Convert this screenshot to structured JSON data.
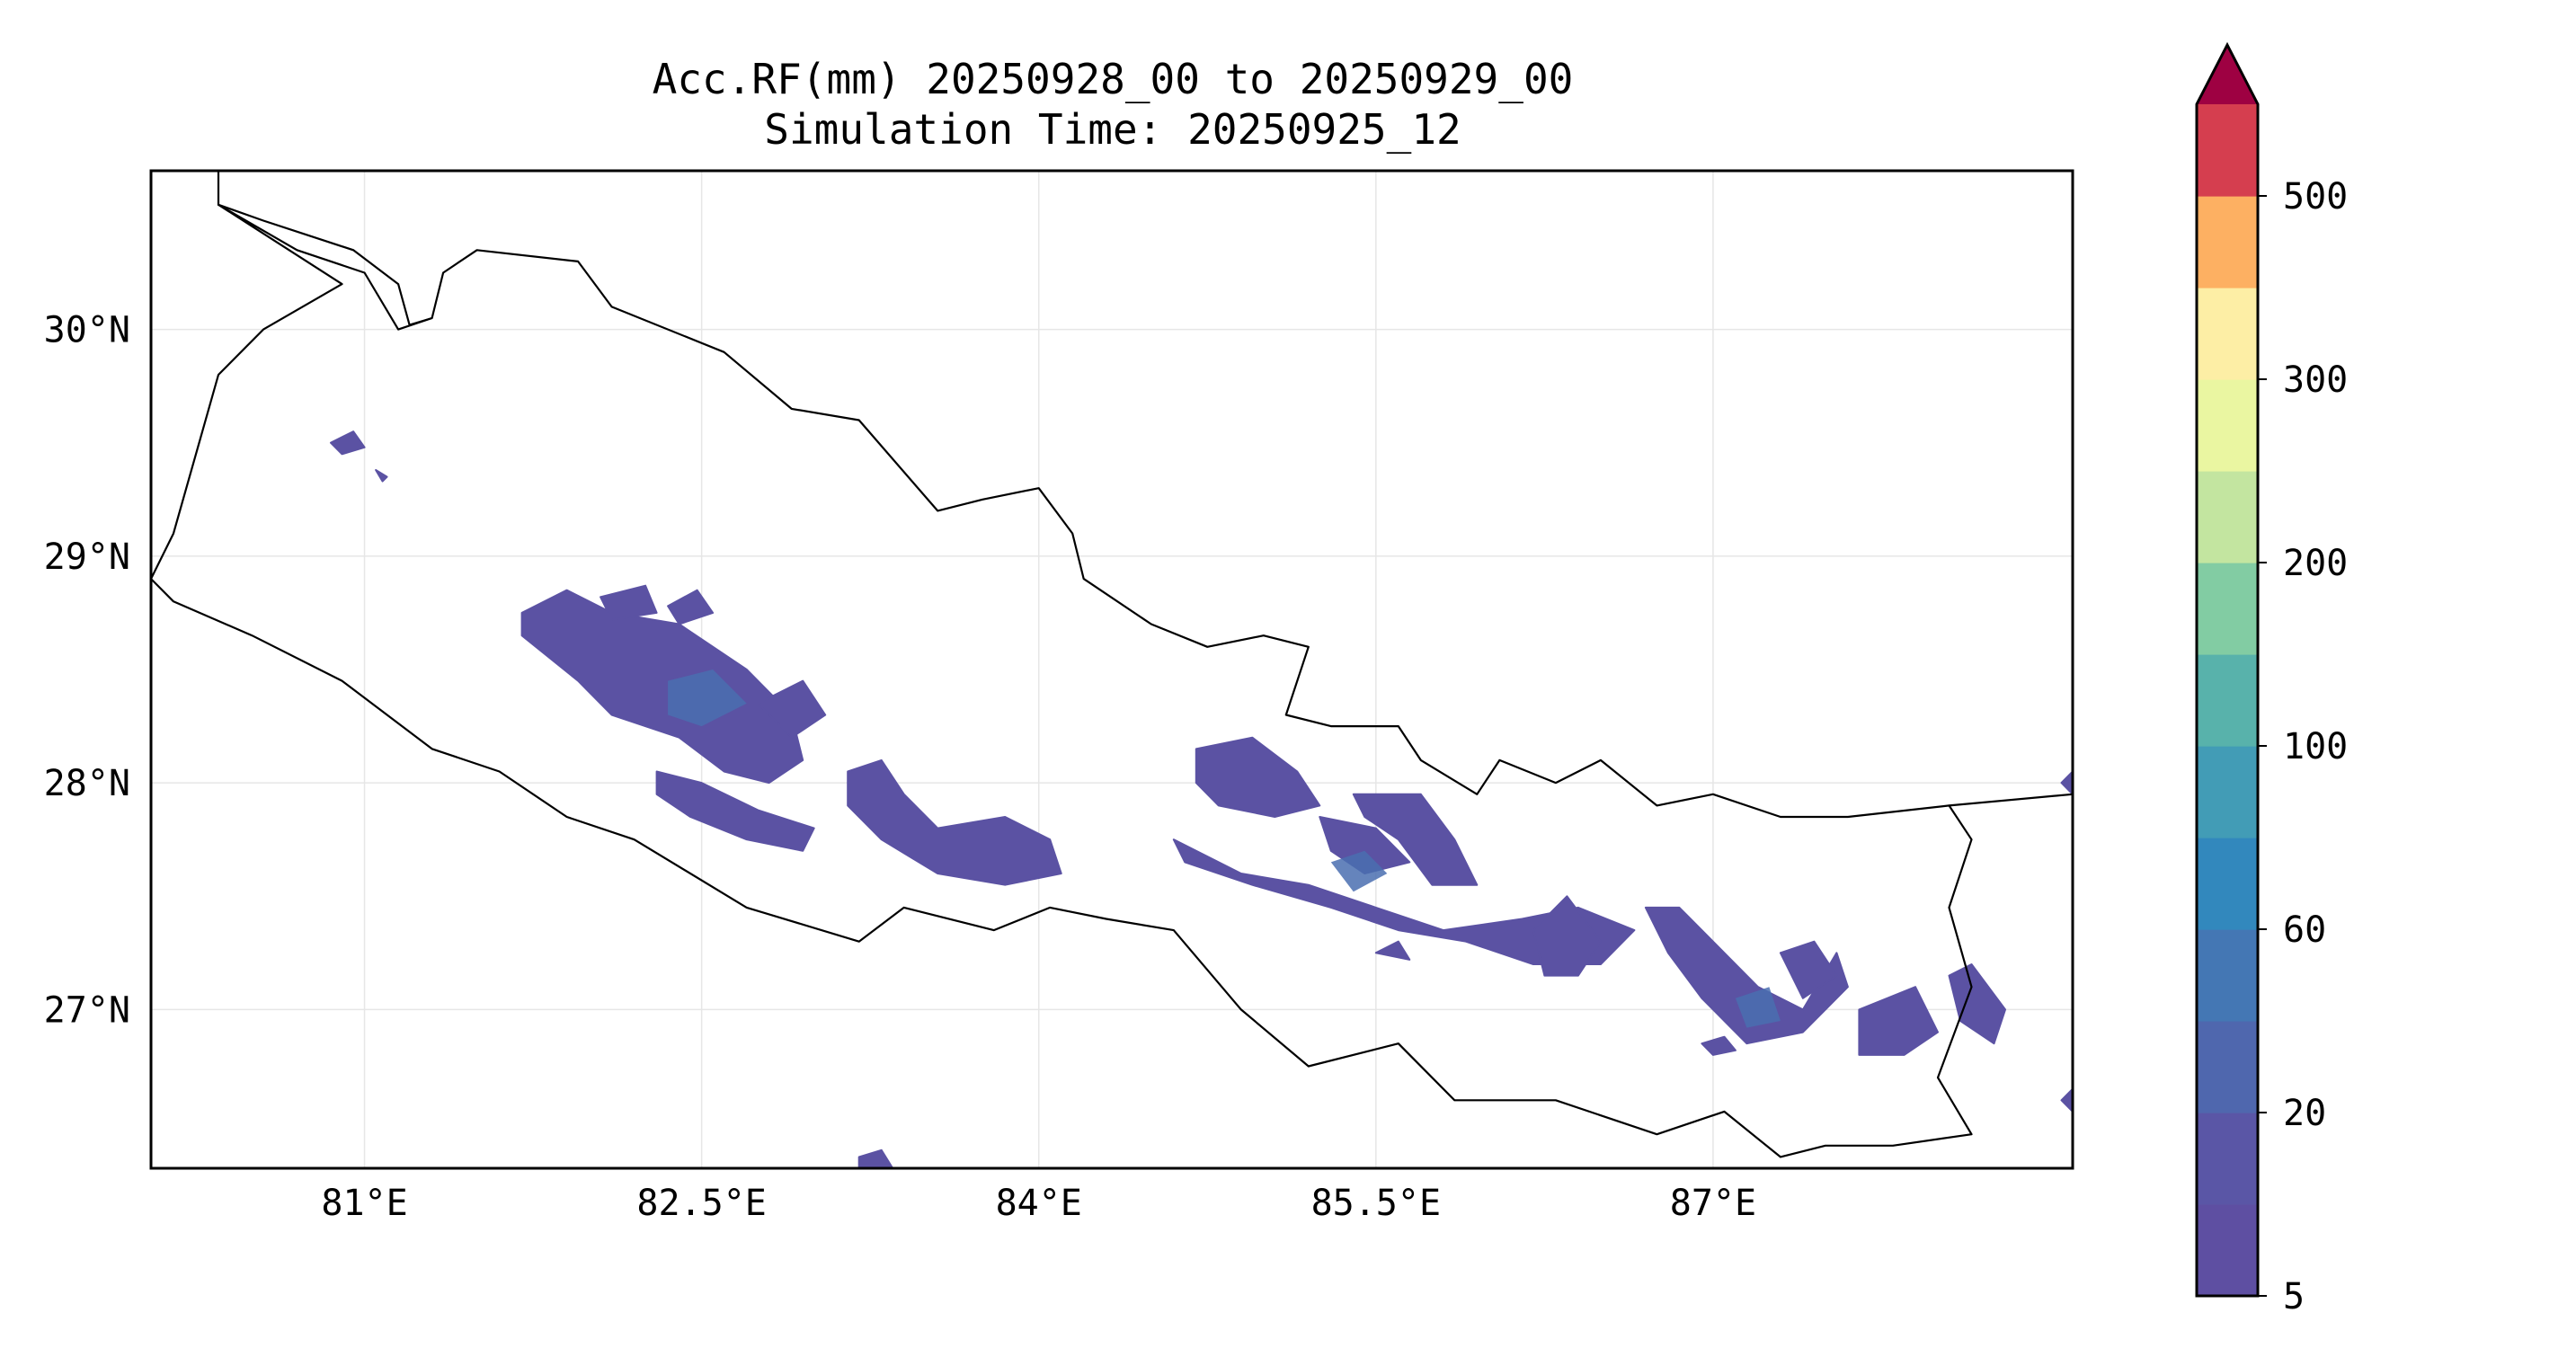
{
  "figure": {
    "title_line1": "Acc.RF(mm) 20250928_00 to 20250929_00",
    "title_line2": "Simulation Time: 20250925_12"
  },
  "map": {
    "extent": {
      "lon": [
        80.05,
        88.6
      ],
      "lat": [
        26.3,
        30.7
      ]
    },
    "grid": true,
    "x_ticks": [
      {
        "value": 81.0,
        "label": "81°E"
      },
      {
        "value": 82.5,
        "label": "82.5°E"
      },
      {
        "value": 84.0,
        "label": "84°E"
      },
      {
        "value": 85.5,
        "label": "85.5°E"
      },
      {
        "value": 87.0,
        "label": "87°E"
      }
    ],
    "y_ticks": [
      {
        "value": 30.0,
        "label": "30°N"
      },
      {
        "value": 29.0,
        "label": "29°N"
      },
      {
        "value": 28.0,
        "label": "28°N"
      },
      {
        "value": 27.0,
        "label": "27°N"
      }
    ],
    "rain_color": "#5b52a3",
    "rain_core_color": "#4a6fb0",
    "border_color": "#000000",
    "nepal_border": [
      [
        80.35,
        30.55
      ],
      [
        80.7,
        30.35
      ],
      [
        81.0,
        30.25
      ],
      [
        81.15,
        30.0
      ],
      [
        81.3,
        30.05
      ],
      [
        81.35,
        30.25
      ],
      [
        81.5,
        30.35
      ],
      [
        81.95,
        30.3
      ],
      [
        82.1,
        30.1
      ],
      [
        82.6,
        29.9
      ],
      [
        82.9,
        29.65
      ],
      [
        83.2,
        29.6
      ],
      [
        83.55,
        29.2
      ],
      [
        83.75,
        29.25
      ],
      [
        84.0,
        29.3
      ],
      [
        84.15,
        29.1
      ],
      [
        84.2,
        28.9
      ],
      [
        84.5,
        28.7
      ],
      [
        84.75,
        28.6
      ],
      [
        85.0,
        28.65
      ],
      [
        85.2,
        28.6
      ],
      [
        85.1,
        28.3
      ],
      [
        85.3,
        28.25
      ],
      [
        85.6,
        28.25
      ],
      [
        85.7,
        28.1
      ],
      [
        85.95,
        27.95
      ],
      [
        86.05,
        28.1
      ],
      [
        86.3,
        28.0
      ],
      [
        86.5,
        28.1
      ],
      [
        86.75,
        27.9
      ],
      [
        87.0,
        27.95
      ],
      [
        87.3,
        27.85
      ],
      [
        87.6,
        27.85
      ],
      [
        88.05,
        27.9
      ],
      [
        88.15,
        27.75
      ],
      [
        88.05,
        27.45
      ],
      [
        88.15,
        27.1
      ],
      [
        88.0,
        26.7
      ],
      [
        88.15,
        26.45
      ],
      [
        87.8,
        26.4
      ],
      [
        87.5,
        26.4
      ],
      [
        87.3,
        26.35
      ],
      [
        87.05,
        26.55
      ],
      [
        86.75,
        26.45
      ],
      [
        86.3,
        26.6
      ],
      [
        85.85,
        26.6
      ],
      [
        85.6,
        26.85
      ],
      [
        85.2,
        26.75
      ],
      [
        84.9,
        27.0
      ],
      [
        84.6,
        27.35
      ],
      [
        84.3,
        27.4
      ],
      [
        84.05,
        27.45
      ],
      [
        83.8,
        27.35
      ],
      [
        83.4,
        27.45
      ],
      [
        83.2,
        27.3
      ],
      [
        82.7,
        27.45
      ],
      [
        82.2,
        27.75
      ],
      [
        81.9,
        27.85
      ],
      [
        81.6,
        28.05
      ],
      [
        81.3,
        28.15
      ],
      [
        80.9,
        28.45
      ],
      [
        80.5,
        28.65
      ],
      [
        80.15,
        28.8
      ],
      [
        80.05,
        28.9
      ],
      [
        80.15,
        29.1
      ],
      [
        80.25,
        29.45
      ],
      [
        80.35,
        29.8
      ],
      [
        80.55,
        30.0
      ],
      [
        80.9,
        30.2
      ],
      [
        80.35,
        30.55
      ]
    ],
    "east_border": [
      [
        88.05,
        27.9
      ],
      [
        88.6,
        27.95
      ]
    ],
    "nw_border": [
      [
        80.35,
        30.7
      ],
      [
        80.35,
        30.55
      ],
      [
        80.55,
        30.48
      ],
      [
        80.95,
        30.35
      ],
      [
        81.15,
        30.2
      ],
      [
        81.2,
        30.02
      ],
      [
        81.3,
        30.05
      ]
    ],
    "rain_regions": [
      [
        [
          80.85,
          29.5
        ],
        [
          80.95,
          29.55
        ],
        [
          81.0,
          29.48
        ],
        [
          80.9,
          29.45
        ]
      ],
      [
        [
          81.05,
          29.38
        ],
        [
          81.1,
          29.35
        ],
        [
          81.08,
          29.33
        ]
      ],
      [
        [
          81.7,
          28.75
        ],
        [
          81.9,
          28.85
        ],
        [
          82.1,
          28.75
        ],
        [
          82.4,
          28.7
        ],
        [
          82.7,
          28.5
        ],
        [
          82.9,
          28.3
        ],
        [
          82.95,
          28.1
        ],
        [
          82.8,
          28.0
        ],
        [
          82.6,
          28.05
        ],
        [
          82.4,
          28.2
        ],
        [
          82.1,
          28.3
        ],
        [
          81.95,
          28.45
        ],
        [
          81.7,
          28.65
        ]
      ],
      [
        [
          82.05,
          28.82
        ],
        [
          82.25,
          28.87
        ],
        [
          82.3,
          28.75
        ],
        [
          82.1,
          28.72
        ]
      ],
      [
        [
          82.35,
          28.78
        ],
        [
          82.48,
          28.85
        ],
        [
          82.55,
          28.75
        ],
        [
          82.4,
          28.7
        ]
      ],
      [
        [
          82.3,
          28.05
        ],
        [
          82.5,
          28.0
        ],
        [
          82.75,
          27.88
        ],
        [
          83.0,
          27.8
        ],
        [
          82.95,
          27.7
        ],
        [
          82.7,
          27.75
        ],
        [
          82.45,
          27.85
        ],
        [
          82.3,
          27.95
        ]
      ],
      [
        [
          82.75,
          28.35
        ],
        [
          82.95,
          28.45
        ],
        [
          83.05,
          28.3
        ],
        [
          82.9,
          28.2
        ]
      ],
      [
        [
          83.15,
          28.05
        ],
        [
          83.3,
          28.1
        ],
        [
          83.4,
          27.95
        ],
        [
          83.55,
          27.8
        ],
        [
          83.85,
          27.85
        ],
        [
          84.05,
          27.75
        ],
        [
          84.1,
          27.6
        ],
        [
          83.85,
          27.55
        ],
        [
          83.55,
          27.6
        ],
        [
          83.3,
          27.75
        ],
        [
          83.15,
          27.9
        ]
      ],
      [
        [
          84.7,
          28.15
        ],
        [
          84.95,
          28.2
        ],
        [
          85.15,
          28.05
        ],
        [
          85.25,
          27.9
        ],
        [
          85.05,
          27.85
        ],
        [
          84.8,
          27.9
        ],
        [
          84.7,
          28.0
        ]
      ],
      [
        [
          84.6,
          27.75
        ],
        [
          84.9,
          27.6
        ],
        [
          85.2,
          27.55
        ],
        [
          85.5,
          27.45
        ],
        [
          85.8,
          27.35
        ],
        [
          86.15,
          27.4
        ],
        [
          86.4,
          27.45
        ],
        [
          86.65,
          27.35
        ],
        [
          86.5,
          27.2
        ],
        [
          86.2,
          27.2
        ],
        [
          85.9,
          27.3
        ],
        [
          85.6,
          27.35
        ],
        [
          85.3,
          27.45
        ],
        [
          84.95,
          27.55
        ],
        [
          84.65,
          27.65
        ]
      ],
      [
        [
          85.25,
          27.85
        ],
        [
          85.5,
          27.8
        ],
        [
          85.65,
          27.65
        ],
        [
          85.45,
          27.6
        ],
        [
          85.3,
          27.7
        ]
      ],
      [
        [
          85.4,
          27.95
        ],
        [
          85.7,
          27.95
        ],
        [
          85.85,
          27.75
        ],
        [
          85.95,
          27.55
        ],
        [
          85.75,
          27.55
        ],
        [
          85.6,
          27.75
        ],
        [
          85.45,
          27.85
        ]
      ],
      [
        [
          85.5,
          27.25
        ],
        [
          85.6,
          27.3
        ],
        [
          85.65,
          27.22
        ]
      ],
      [
        [
          86.2,
          27.35
        ],
        [
          86.35,
          27.5
        ],
        [
          86.5,
          27.3
        ],
        [
          86.4,
          27.15
        ],
        [
          86.25,
          27.15
        ]
      ],
      [
        [
          86.7,
          27.45
        ],
        [
          86.85,
          27.45
        ],
        [
          87.0,
          27.3
        ],
        [
          87.2,
          27.1
        ],
        [
          87.4,
          27.0
        ],
        [
          87.55,
          27.25
        ],
        [
          87.6,
          27.1
        ],
        [
          87.4,
          26.9
        ],
        [
          87.15,
          26.85
        ],
        [
          86.95,
          27.05
        ],
        [
          86.8,
          27.25
        ]
      ],
      [
        [
          87.3,
          27.25
        ],
        [
          87.45,
          27.3
        ],
        [
          87.55,
          27.15
        ],
        [
          87.4,
          27.05
        ]
      ],
      [
        [
          87.65,
          27.0
        ],
        [
          87.9,
          27.1
        ],
        [
          88.0,
          26.9
        ],
        [
          87.85,
          26.8
        ],
        [
          87.65,
          26.8
        ]
      ],
      [
        [
          88.05,
          27.15
        ],
        [
          88.15,
          27.2
        ],
        [
          88.3,
          27.0
        ],
        [
          88.25,
          26.85
        ],
        [
          88.1,
          26.95
        ]
      ],
      [
        [
          86.95,
          26.85
        ],
        [
          87.05,
          26.88
        ],
        [
          87.1,
          26.82
        ],
        [
          87.0,
          26.8
        ]
      ],
      [
        [
          88.55,
          28.0
        ],
        [
          88.6,
          28.05
        ],
        [
          88.6,
          27.95
        ]
      ],
      [
        [
          88.55,
          26.6
        ],
        [
          88.6,
          26.65
        ],
        [
          88.6,
          26.55
        ]
      ],
      [
        [
          83.2,
          26.35
        ],
        [
          83.3,
          26.38
        ],
        [
          83.35,
          26.3
        ],
        [
          83.2,
          26.3
        ]
      ]
    ],
    "rain_cores": [
      [
        [
          82.35,
          28.45
        ],
        [
          82.55,
          28.5
        ],
        [
          82.7,
          28.35
        ],
        [
          82.5,
          28.25
        ],
        [
          82.35,
          28.3
        ]
      ],
      [
        [
          85.3,
          27.65
        ],
        [
          85.45,
          27.7
        ],
        [
          85.55,
          27.6
        ],
        [
          85.4,
          27.52
        ]
      ],
      [
        [
          87.1,
          27.05
        ],
        [
          87.25,
          27.1
        ],
        [
          87.3,
          26.95
        ],
        [
          87.15,
          26.92
        ]
      ]
    ]
  },
  "colorbar": {
    "colors": [
      "#5e4fa2",
      "#5a56a6",
      "#4f67ae",
      "#4477b4",
      "#3288bd",
      "#429cb6",
      "#58b2ab",
      "#82cca3",
      "#c3e5a0",
      "#eaf6a1",
      "#fdeea5",
      "#fdb062",
      "#d53e4f"
    ],
    "extend_color": "#9e0142",
    "tick_labels": [
      {
        "level": 0,
        "label": "5"
      },
      {
        "level": 2,
        "label": "20"
      },
      {
        "level": 4,
        "label": "60"
      },
      {
        "level": 6,
        "label": "100"
      },
      {
        "level": 8,
        "label": "200"
      },
      {
        "level": 10,
        "label": "300"
      },
      {
        "level": 12,
        "label": "500"
      }
    ]
  }
}
